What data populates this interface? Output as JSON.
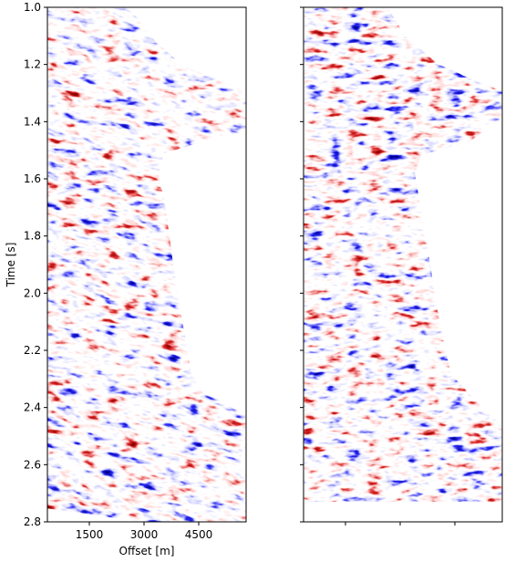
{
  "chart_data": [
    {
      "type": "image",
      "xlabel": "Offset [m]",
      "ylabel": "Time [s]",
      "xlim": [
        350,
        5800
      ],
      "xticks": [
        1500,
        3000,
        4500
      ],
      "ylim": [
        1.0,
        2.8
      ],
      "inverted_y": true,
      "yticks": [
        {
          "value": 1,
          "label": "1.0"
        },
        1.2,
        1.4,
        1.6,
        1.8,
        {
          "value": 2,
          "label": "2.0"
        },
        2.2,
        2.4,
        2.6,
        2.8
      ],
      "tick_labels": true,
      "colormap": "seismic"
    },
    {
      "type": "image",
      "xlim": [
        350,
        5800
      ],
      "xticks": [
        1500,
        3000,
        4500
      ],
      "ylim": [
        1.0,
        2.8
      ],
      "inverted_y": true,
      "yticks": [
        1,
        1.2,
        1.4,
        1.6,
        1.8,
        2,
        2.2,
        2.4,
        2.6,
        2.8
      ],
      "tick_labels": false,
      "colormap": "seismic"
    }
  ]
}
